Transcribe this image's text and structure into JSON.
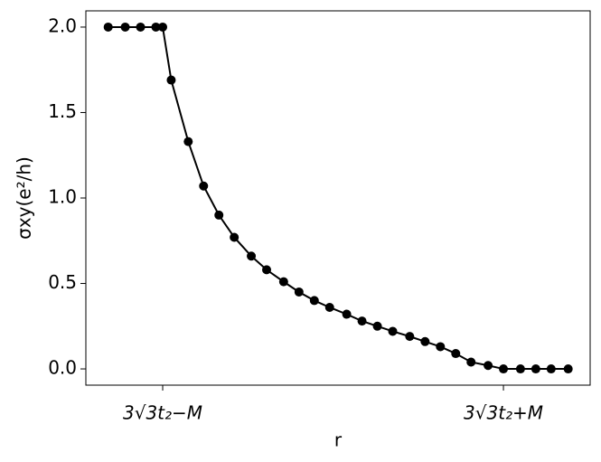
{
  "chart_data": {
    "type": "line",
    "xlabel": "r",
    "ylabel": "σxy(e²/h)",
    "x": [
      -1.32,
      -1.22,
      -1.13,
      -1.04,
      -1.0,
      -0.95,
      -0.85,
      -0.76,
      -0.67,
      -0.58,
      -0.48,
      -0.39,
      -0.29,
      -0.2,
      -0.11,
      -0.02,
      0.08,
      0.17,
      0.26,
      0.35,
      0.45,
      0.54,
      0.63,
      0.72,
      0.81,
      0.91,
      1.0,
      1.1,
      1.19,
      1.28,
      1.38
    ],
    "series": [
      {
        "color": "#000000",
        "values": [
          2.0,
          2.0,
          2.0,
          2.0,
          2.0,
          1.69,
          1.33,
          1.07,
          0.9,
          0.77,
          0.66,
          0.58,
          0.51,
          0.45,
          0.4,
          0.36,
          0.32,
          0.28,
          0.25,
          0.22,
          0.19,
          0.16,
          0.13,
          0.09,
          0.04,
          0.02,
          0,
          0,
          0,
          0,
          0
        ]
      }
    ],
    "xlim": [
      -1.451,
      1.509
    ],
    "xticks": [
      {
        "value": -1,
        "label": "3√3t₂−M"
      },
      {
        "value": 1,
        "label": "3√3t₂+M"
      }
    ],
    "ylim": [
      -0.095,
      2.095
    ],
    "yticks": [
      {
        "value": 0,
        "label": "0.0"
      },
      {
        "value": 0.5,
        "label": "0.5"
      },
      {
        "value": 1,
        "label": "1.0"
      },
      {
        "value": 1.5,
        "label": "1.5"
      },
      {
        "value": 2,
        "label": "2.0"
      }
    ],
    "grid": false
  }
}
